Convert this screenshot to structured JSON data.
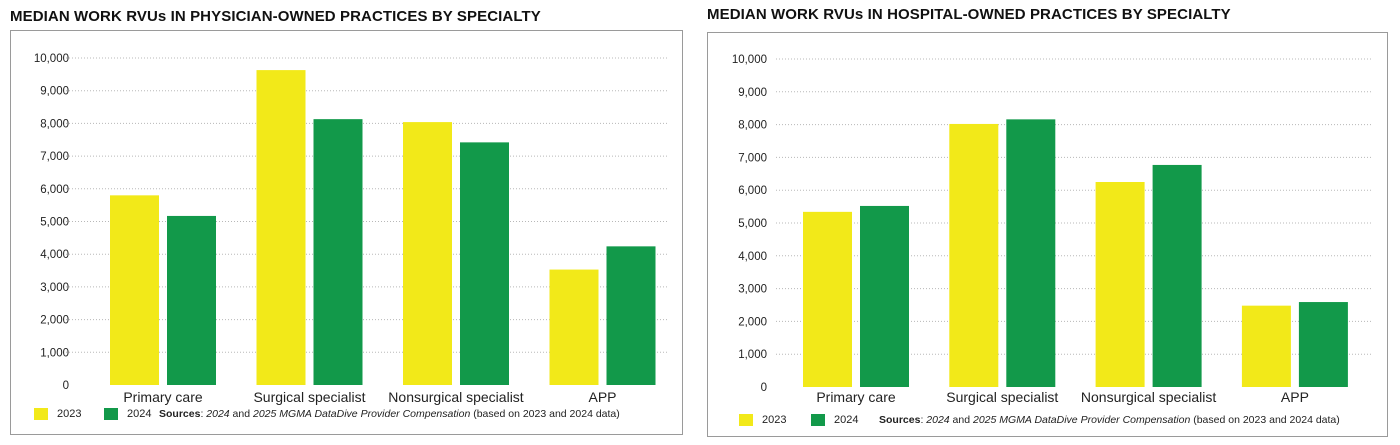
{
  "colors": {
    "2023": "#F2E919",
    "2024": "#12994A",
    "grid": "#b8b8b8"
  },
  "chart_data": [
    {
      "type": "bar",
      "title": "MEDIAN WORK RVUs IN PHYSICIAN-OWNED PRACTICES BY SPECIALTY",
      "categories": [
        "Primary care",
        "Surgical specialist",
        "Nonsurgical specialist",
        "APP"
      ],
      "series": [
        {
          "name": "2023",
          "values": [
            5800,
            9630,
            8040,
            3530
          ]
        },
        {
          "name": "2024",
          "values": [
            5170,
            8130,
            7420,
            4240
          ]
        }
      ],
      "ylim": [
        0,
        10000
      ],
      "yticks": [
        "0",
        "1,000",
        "2,000",
        "3,000",
        "4,000",
        "5,000",
        "6,000",
        "7,000",
        "8,000",
        "9,000",
        "10,000"
      ],
      "grid": true,
      "legend": "bottom-left",
      "source": [
        {
          "text": "Sources",
          "style": "bold"
        },
        {
          "text": ": ",
          "style": "normal"
        },
        {
          "text": "2024",
          "style": "italic"
        },
        {
          "text": " and ",
          "style": "normal"
        },
        {
          "text": "2025 MGMA DataDive Provider Compensation",
          "style": "italic"
        },
        {
          "text": " (based on 2023 and 2024 data)",
          "style": "normal"
        }
      ]
    },
    {
      "type": "bar",
      "title": "MEDIAN WORK RVUs IN HOSPITAL-OWNED PRACTICES BY SPECIALTY",
      "categories": [
        "Primary care",
        "Surgical specialist",
        "Nonsurgical specialist",
        "APP"
      ],
      "series": [
        {
          "name": "2023",
          "values": [
            5340,
            8020,
            6250,
            2480
          ]
        },
        {
          "name": "2024",
          "values": [
            5520,
            8160,
            6770,
            2590
          ]
        }
      ],
      "ylim": [
        0,
        10000
      ],
      "yticks": [
        "0",
        "1,000",
        "2,000",
        "3,000",
        "4,000",
        "5,000",
        "6,000",
        "7,000",
        "8,000",
        "9,000",
        "10,000"
      ],
      "grid": true,
      "legend": "bottom-left",
      "source": [
        {
          "text": "Sources",
          "style": "bold"
        },
        {
          "text": ": ",
          "style": "normal"
        },
        {
          "text": "2024",
          "style": "italic"
        },
        {
          "text": " and ",
          "style": "normal"
        },
        {
          "text": "2025 MGMA DataDive Provider Compensation",
          "style": "italic"
        },
        {
          "text": " (based on 2023 and 2024 data)",
          "style": "normal"
        }
      ]
    }
  ]
}
